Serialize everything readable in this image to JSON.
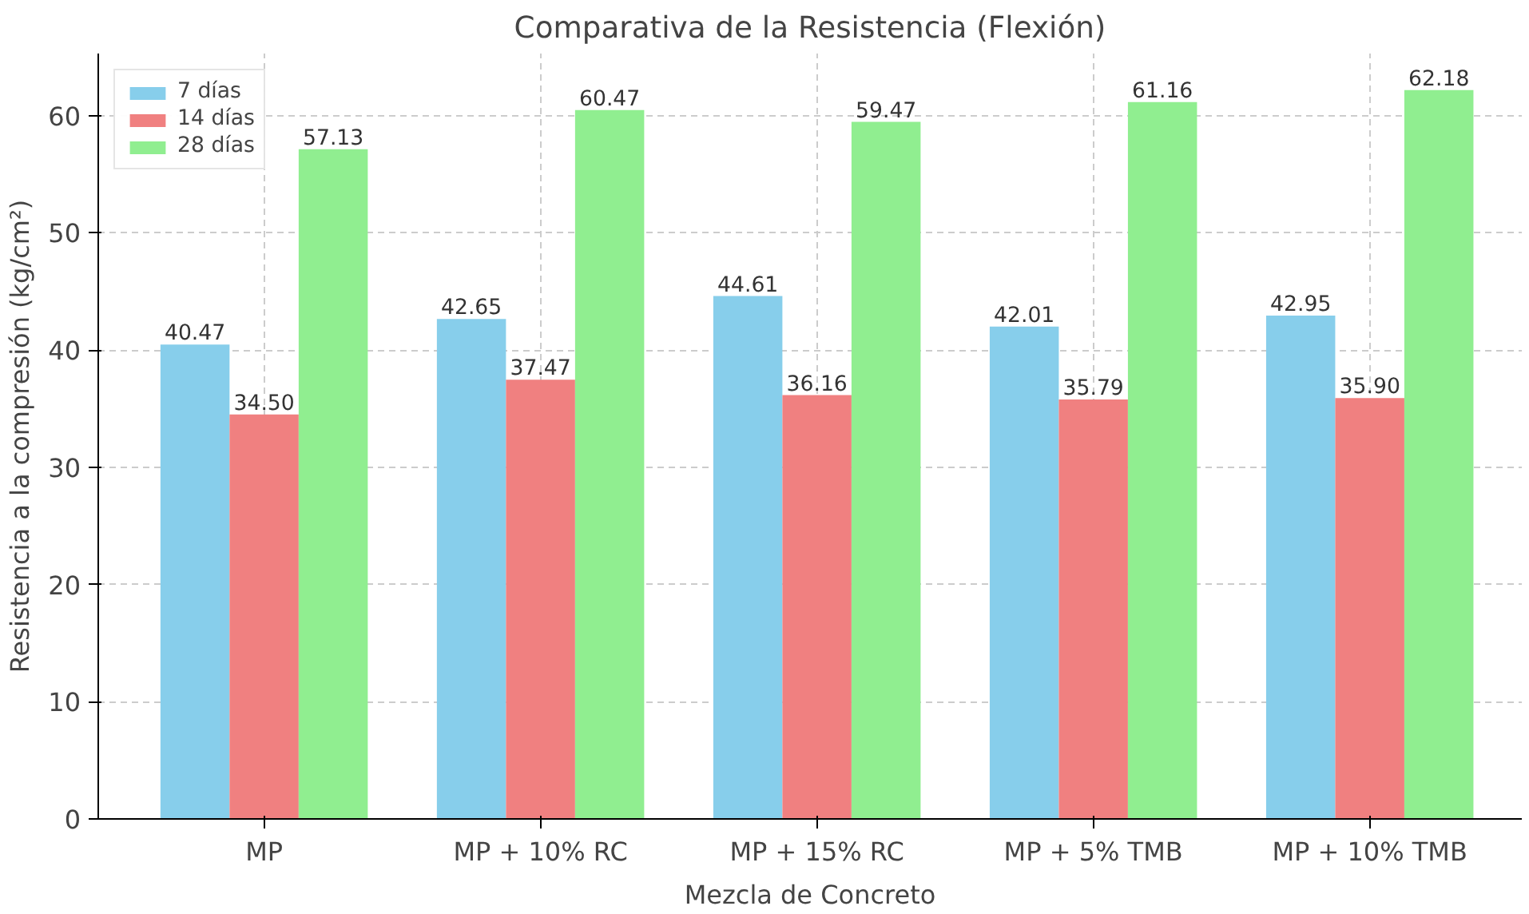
{
  "chart_data": {
    "type": "bar",
    "title": "Comparativa de la Resistencia (Flexión)",
    "xlabel": "Mezcla de Concreto",
    "ylabel": "Resistencia a la compresión (kg/cm²)",
    "categories": [
      "MP",
      "MP + 10% RC",
      "MP + 15% RC",
      "MP + 5% TMB",
      "MP + 10% TMB"
    ],
    "series": [
      {
        "name": "7 días",
        "color": "#87ceeb",
        "values": [
          40.47,
          42.65,
          44.61,
          42.01,
          42.95
        ],
        "value_labels": [
          "40.47",
          "42.65",
          "44.61",
          "42.01",
          "42.95"
        ]
      },
      {
        "name": "14 días",
        "color": "#f08080",
        "values": [
          34.5,
          37.47,
          36.16,
          35.79,
          35.9
        ],
        "value_labels": [
          "34.50",
          "37.47",
          "36.16",
          "35.79",
          "35.90"
        ]
      },
      {
        "name": "28 días",
        "color": "#90ee90",
        "values": [
          57.13,
          60.47,
          59.47,
          61.16,
          62.18
        ],
        "value_labels": [
          "57.13",
          "60.47",
          "59.47",
          "61.16",
          "62.18"
        ]
      }
    ],
    "ylim": [
      0,
      65.3
    ],
    "yticks": [
      0,
      10,
      20,
      30,
      40,
      50,
      60
    ],
    "grid": true,
    "legend": "top left"
  }
}
